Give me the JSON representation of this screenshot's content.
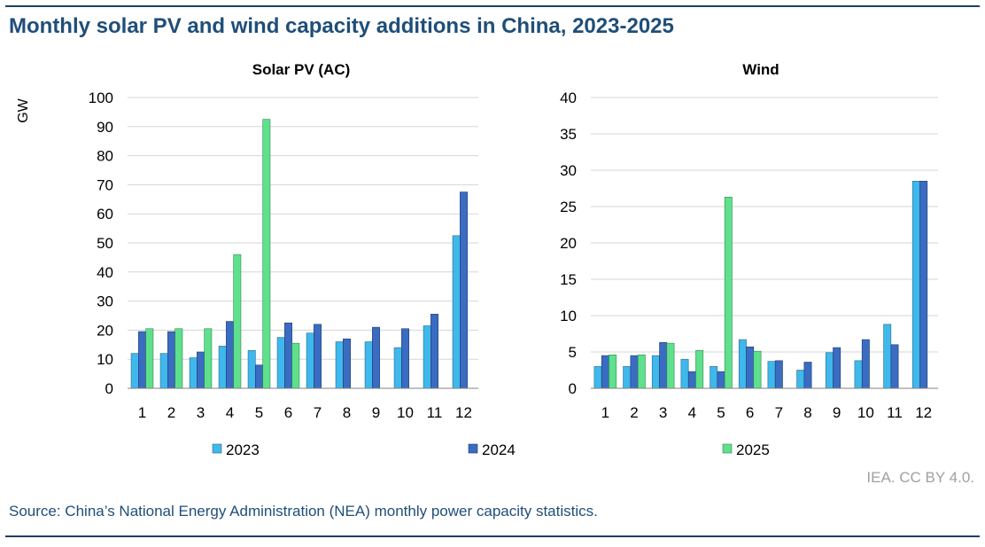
{
  "title": "Monthly solar PV and wind capacity additions in China, 2023-2025",
  "credit": "IEA. CC BY 4.0.",
  "source": "Source: China’s National Energy Administration (NEA) monthly power capacity statistics.",
  "colors": {
    "2023": "#3fb8ec",
    "2024": "#3a6cc2",
    "2025": "#5fe08c",
    "grid": "#d6d6d6",
    "axis": "#808080"
  },
  "legend": [
    "2023",
    "2024",
    "2025"
  ],
  "chart_data": [
    {
      "type": "bar",
      "title": "Solar PV (AC)",
      "ylabel": "GW",
      "ylim": [
        0,
        100
      ],
      "yticks": [
        "0",
        "10",
        "20",
        "30",
        "40",
        "50",
        "60",
        "70",
        "80",
        "90",
        "100"
      ],
      "categories": [
        "1",
        "2",
        "3",
        "4",
        "5",
        "6",
        "7",
        "8",
        "9",
        "10",
        "11",
        "12"
      ],
      "series": [
        {
          "name": "2023",
          "values": [
            12,
            12,
            10.5,
            14.5,
            13,
            17.5,
            19,
            16,
            16,
            14,
            21.5,
            52.5
          ]
        },
        {
          "name": "2024",
          "values": [
            19.5,
            19.5,
            12.5,
            23,
            8,
            22.5,
            22,
            17,
            21,
            20.5,
            25.5,
            67.5
          ]
        },
        {
          "name": "2025",
          "values": [
            20.5,
            20.5,
            20.5,
            46,
            92.5,
            15.5,
            null,
            null,
            null,
            null,
            null,
            null
          ]
        }
      ]
    },
    {
      "type": "bar",
      "title": "Wind",
      "ylabel": "",
      "ylim": [
        0,
        40
      ],
      "yticks": [
        "0",
        "5",
        "10",
        "15",
        "20",
        "25",
        "30",
        "35",
        "40"
      ],
      "categories": [
        "1",
        "2",
        "3",
        "4",
        "5",
        "6",
        "7",
        "8",
        "9",
        "10",
        "11",
        "12"
      ],
      "series": [
        {
          "name": "2023",
          "values": [
            3,
            3,
            4.5,
            4,
            3,
            6.7,
            3.7,
            2.5,
            4.9,
            3.8,
            8.8,
            28.5
          ]
        },
        {
          "name": "2024",
          "values": [
            4.5,
            4.5,
            6.3,
            2.3,
            2.3,
            5.7,
            3.8,
            3.6,
            5.6,
            6.7,
            6,
            28.5
          ]
        },
        {
          "name": "2025",
          "values": [
            4.6,
            4.6,
            6.2,
            5.2,
            26.3,
            5.1,
            null,
            null,
            null,
            null,
            null,
            null
          ]
        }
      ]
    }
  ]
}
